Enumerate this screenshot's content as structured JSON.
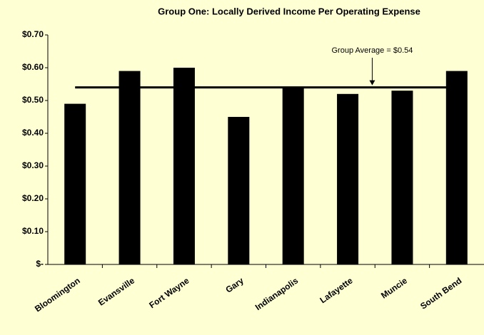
{
  "chart_data": {
    "type": "bar",
    "title": "Group One:  Locally Derived Income Per Operating Expense",
    "categories": [
      "Bloomington",
      "Evansville",
      "Fort Wayne",
      "Gary",
      "Indianapolis",
      "Lafayette",
      "Muncie",
      "South Bend"
    ],
    "values": [
      0.49,
      0.59,
      0.6,
      0.45,
      0.54,
      0.52,
      0.53,
      0.59
    ],
    "color": "#000000",
    "background": "#ffffd4",
    "ylim": [
      0,
      0.7
    ],
    "yticks": [
      {
        "value": 0,
        "label": "$-"
      },
      {
        "value": 0.1,
        "label": "$0.10"
      },
      {
        "value": 0.2,
        "label": "$0.20"
      },
      {
        "value": 0.3,
        "label": "$0.30"
      },
      {
        "value": 0.4,
        "label": "$0.40"
      },
      {
        "value": 0.5,
        "label": "$0.50"
      },
      {
        "value": 0.6,
        "label": "$0.60"
      },
      {
        "value": 0.7,
        "label": "$0.70"
      }
    ],
    "grid": false,
    "average": 0.54,
    "average_label": "Group Average = $0.54"
  }
}
